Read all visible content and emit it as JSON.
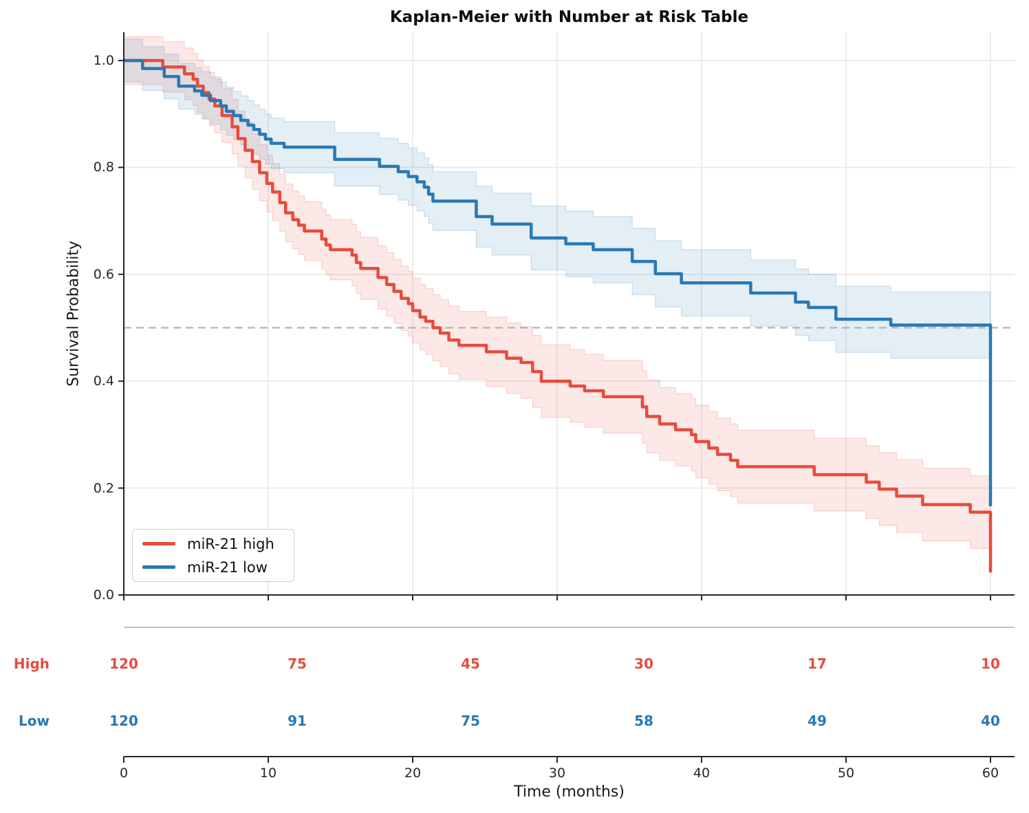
{
  "title": "Kaplan-Meier with Number at Risk Table",
  "axes": {
    "ylabel": "Survival Probability",
    "xlabel": "Time (months)",
    "ytick_labels": [
      "0.0",
      "0.2",
      "0.4",
      "0.6",
      "0.8",
      "1.0"
    ],
    "yticks": [
      0.0,
      0.2,
      0.4,
      0.6,
      0.8,
      1.0
    ],
    "xtick_labels": [
      "0",
      "10",
      "20",
      "30",
      "40",
      "50",
      "60"
    ],
    "xticks": [
      0,
      10,
      20,
      30,
      40,
      50,
      60
    ],
    "xlim": [
      0,
      61.7
    ],
    "ylim": [
      0,
      1.052
    ],
    "grid": true
  },
  "colors": {
    "high": "#e74c3c",
    "low": "#2878b5",
    "grid": "#e8e8e8",
    "median_line": "#b3b3b3",
    "spine": "#262626",
    "separator": "#999999",
    "title_text": "#0d0d0d",
    "tick_text": "#262626"
  },
  "chart_data": {
    "type": "line",
    "subtype": "kaplan-meier-step",
    "title": "Kaplan-Meier with Number at Risk Table",
    "xlabel": "Time (months)",
    "ylabel": "Survival Probability",
    "xlim": [
      0,
      61.7
    ],
    "ylim": [
      0,
      1.052
    ],
    "grid": true,
    "reference_line": {
      "y": 0.5,
      "style": "dashed",
      "color": "#b3b3b3"
    },
    "legend_position": "lower-left",
    "series": [
      {
        "name": "miR-21 high",
        "color": "#e74c3c",
        "step": true,
        "ci": {
          "base": 0.045,
          "rate": 0.0008,
          "max": 0.068,
          "fill": "rgba(231,76,60,0.13)"
        },
        "points": [
          [
            0,
            1.0
          ],
          [
            2.7,
            0.988
          ],
          [
            4.2,
            0.975
          ],
          [
            4.8,
            0.965
          ],
          [
            5.1,
            0.952
          ],
          [
            5.5,
            0.94
          ],
          [
            5.9,
            0.928
          ],
          [
            6.3,
            0.915
          ],
          [
            6.8,
            0.897
          ],
          [
            7.5,
            0.876
          ],
          [
            7.9,
            0.854
          ],
          [
            8.4,
            0.832
          ],
          [
            8.9,
            0.811
          ],
          [
            9.4,
            0.79
          ],
          [
            9.9,
            0.77
          ],
          [
            10.3,
            0.754
          ],
          [
            10.8,
            0.734
          ],
          [
            11.2,
            0.715
          ],
          [
            11.7,
            0.702
          ],
          [
            12.1,
            0.692
          ],
          [
            12.5,
            0.681
          ],
          [
            13.7,
            0.666
          ],
          [
            14.0,
            0.655
          ],
          [
            14.3,
            0.646
          ],
          [
            15.8,
            0.636
          ],
          [
            16.1,
            0.622
          ],
          [
            16.4,
            0.611
          ],
          [
            17.6,
            0.594
          ],
          [
            18.2,
            0.581
          ],
          [
            18.7,
            0.568
          ],
          [
            19.2,
            0.555
          ],
          [
            19.7,
            0.545
          ],
          [
            20.0,
            0.532
          ],
          [
            20.5,
            0.52
          ],
          [
            20.9,
            0.512
          ],
          [
            21.4,
            0.5
          ],
          [
            21.9,
            0.49
          ],
          [
            22.5,
            0.477
          ],
          [
            23.2,
            0.467
          ],
          [
            25.1,
            0.455
          ],
          [
            26.5,
            0.443
          ],
          [
            27.5,
            0.435
          ],
          [
            28.3,
            0.418
          ],
          [
            28.9,
            0.4
          ],
          [
            30.9,
            0.391
          ],
          [
            31.9,
            0.382
          ],
          [
            33.2,
            0.371
          ],
          [
            35.9,
            0.352
          ],
          [
            36.2,
            0.334
          ],
          [
            37.1,
            0.32
          ],
          [
            38.2,
            0.309
          ],
          [
            39.3,
            0.3
          ],
          [
            39.6,
            0.287
          ],
          [
            40.5,
            0.275
          ],
          [
            41.1,
            0.263
          ],
          [
            42.0,
            0.252
          ],
          [
            42.5,
            0.24
          ],
          [
            47.8,
            0.225
          ],
          [
            51.4,
            0.211
          ],
          [
            52.3,
            0.198
          ],
          [
            53.5,
            0.185
          ],
          [
            55.3,
            0.169
          ],
          [
            58.6,
            0.155
          ],
          [
            60,
            0.042
          ]
        ]
      },
      {
        "name": "miR-21 low",
        "color": "#2878b5",
        "step": true,
        "ci": {
          "base": 0.04,
          "rate": 0.0007,
          "max": 0.062,
          "fill": "rgba(40,120,181,0.13)"
        },
        "points": [
          [
            0,
            1.0
          ],
          [
            1.3,
            0.985
          ],
          [
            2.8,
            0.97
          ],
          [
            3.8,
            0.952
          ],
          [
            4.9,
            0.943
          ],
          [
            5.4,
            0.935
          ],
          [
            6.0,
            0.925
          ],
          [
            6.7,
            0.915
          ],
          [
            7.1,
            0.905
          ],
          [
            7.6,
            0.897
          ],
          [
            8.1,
            0.888
          ],
          [
            8.6,
            0.879
          ],
          [
            9.0,
            0.871
          ],
          [
            9.4,
            0.862
          ],
          [
            9.8,
            0.853
          ],
          [
            10.2,
            0.845
          ],
          [
            11.1,
            0.838
          ],
          [
            14.6,
            0.815
          ],
          [
            17.7,
            0.802
          ],
          [
            19.0,
            0.792
          ],
          [
            19.7,
            0.783
          ],
          [
            20.3,
            0.773
          ],
          [
            20.8,
            0.763
          ],
          [
            21.1,
            0.75
          ],
          [
            21.4,
            0.737
          ],
          [
            24.4,
            0.708
          ],
          [
            25.5,
            0.694
          ],
          [
            28.2,
            0.668
          ],
          [
            30.6,
            0.657
          ],
          [
            32.5,
            0.646
          ],
          [
            35.2,
            0.624
          ],
          [
            36.8,
            0.601
          ],
          [
            38.6,
            0.584
          ],
          [
            43.4,
            0.565
          ],
          [
            46.5,
            0.548
          ],
          [
            47.4,
            0.538
          ],
          [
            49.3,
            0.516
          ],
          [
            53.1,
            0.505
          ],
          [
            60,
            0.166
          ]
        ]
      }
    ]
  },
  "risk_table": {
    "times": [
      0,
      12,
      24,
      36,
      48,
      60
    ],
    "rows": [
      {
        "label": "High",
        "color": "#e74c3c",
        "counts": [
          120,
          75,
          45,
          30,
          17,
          10
        ]
      },
      {
        "label": "Low",
        "color": "#2878b5",
        "counts": [
          120,
          91,
          75,
          58,
          49,
          40
        ]
      }
    ]
  }
}
